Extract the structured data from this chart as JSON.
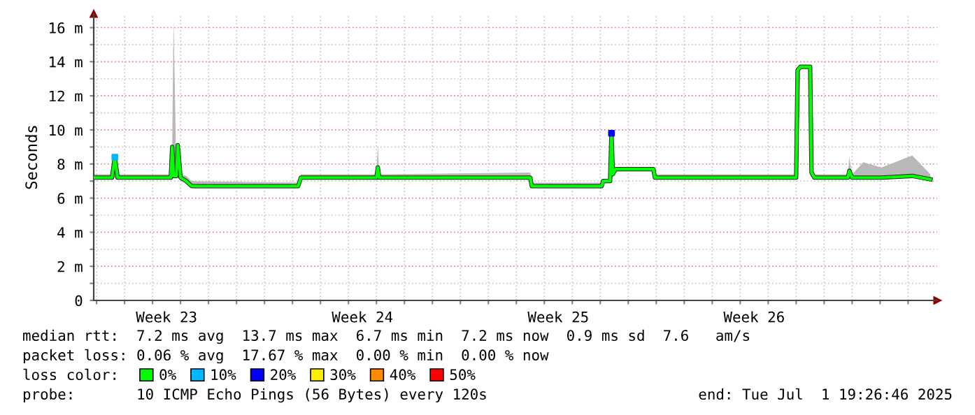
{
  "chart_data": {
    "type": "line",
    "ylabel": "Seconds",
    "legend_title": "loss color:",
    "legend": "bottom",
    "grid": true,
    "xlim": [
      "2025-06-01T21:30",
      "2025-07-02T01:00"
    ],
    "xticks": [
      {
        "value": "2025-06-02T00:00",
        "label": null
      },
      {
        "value": "2025-06-03T00:00",
        "label": null
      },
      {
        "value": "2025-06-04T00:00",
        "label": null
      },
      {
        "value": "2025-06-04T12:00",
        "label": "Week 23"
      },
      {
        "value": "2025-06-05T00:00",
        "label": null
      },
      {
        "value": "2025-06-06T00:00",
        "label": null
      },
      {
        "value": "2025-06-07T00:00",
        "label": null
      },
      {
        "value": "2025-06-08T00:00",
        "label": null
      },
      {
        "value": "2025-06-09T00:00",
        "label": null
      },
      {
        "value": "2025-06-10T00:00",
        "label": null
      },
      {
        "value": "2025-06-11T00:00",
        "label": null
      },
      {
        "value": "2025-06-11T12:00",
        "label": "Week 24"
      },
      {
        "value": "2025-06-12T00:00",
        "label": null
      },
      {
        "value": "2025-06-13T00:00",
        "label": null
      },
      {
        "value": "2025-06-14T00:00",
        "label": null
      },
      {
        "value": "2025-06-15T00:00",
        "label": null
      },
      {
        "value": "2025-06-16T00:00",
        "label": null
      },
      {
        "value": "2025-06-17T00:00",
        "label": null
      },
      {
        "value": "2025-06-18T00:00",
        "label": null
      },
      {
        "value": "2025-06-18T12:00",
        "label": "Week 25"
      },
      {
        "value": "2025-06-19T00:00",
        "label": null
      },
      {
        "value": "2025-06-20T00:00",
        "label": null
      },
      {
        "value": "2025-06-21T00:00",
        "label": null
      },
      {
        "value": "2025-06-22T00:00",
        "label": null
      },
      {
        "value": "2025-06-23T00:00",
        "label": null
      },
      {
        "value": "2025-06-24T00:00",
        "label": null
      },
      {
        "value": "2025-06-25T00:00",
        "label": null
      },
      {
        "value": "2025-06-25T12:00",
        "label": "Week 26"
      },
      {
        "value": "2025-06-26T00:00",
        "label": null
      },
      {
        "value": "2025-06-27T00:00",
        "label": null
      },
      {
        "value": "2025-06-28T00:00",
        "label": null
      },
      {
        "value": "2025-06-29T00:00",
        "label": null
      },
      {
        "value": "2025-06-30T00:00",
        "label": null
      },
      {
        "value": "2025-07-01T00:00",
        "label": null
      }
    ],
    "ylim": [
      0,
      16.8
    ],
    "yticks": [
      0,
      {
        "value": 1,
        "label": null
      },
      {
        "value": 2,
        "label": "2 m"
      },
      {
        "value": 3,
        "label": null
      },
      {
        "value": 4,
        "label": "4 m"
      },
      {
        "value": 5,
        "label": null
      },
      {
        "value": 6,
        "label": "6 m"
      },
      {
        "value": 7,
        "label": null
      },
      {
        "value": 8,
        "label": "8 m"
      },
      {
        "value": 9,
        "label": null
      },
      {
        "value": 10,
        "label": "10 m"
      },
      {
        "value": 11,
        "label": null
      },
      {
        "value": 12,
        "label": "12 m"
      },
      {
        "value": 13,
        "label": null
      },
      {
        "value": 14,
        "label": "14 m"
      },
      {
        "value": 15,
        "label": null
      },
      {
        "value": 16,
        "label": "16 m"
      }
    ],
    "series": [
      {
        "name": "0%",
        "color": "#00ff00",
        "x": [
          "2025-06-01T21:36",
          "2025-06-02T13:12",
          "2025-06-02T15:36",
          "2025-06-02T18:00",
          "2025-06-04T15:36",
          "2025-06-04T16:48",
          "2025-06-04T18:00",
          "2025-06-04T20:24",
          "2025-06-04T21:36",
          "2025-06-05T00:00",
          "2025-06-05T04:48",
          "2025-06-05T09:36",
          "2025-06-09T04:48",
          "2025-06-09T07:12",
          "2025-06-12T00:00",
          "2025-06-12T01:12",
          "2025-06-12T02:24",
          "2025-06-17T12:00",
          "2025-06-17T13:12",
          "2025-06-20T01:12",
          "2025-06-20T02:24",
          "2025-06-20T08:24",
          "2025-06-20T09:36",
          "2025-06-20T10:48",
          "2025-06-20T13:12",
          "2025-06-21T21:36",
          "2025-06-21T22:48",
          "2025-06-27T00:00",
          "2025-06-27T01:12",
          "2025-06-27T03:36",
          "2025-06-27T12:00",
          "2025-06-27T13:12",
          "2025-06-27T15:36",
          "2025-06-28T20:24",
          "2025-06-28T21:36",
          "2025-06-29T00:00",
          "2025-06-29T09:36",
          "2025-06-30T01:12",
          "2025-07-01T03:36",
          "2025-07-01T19:12"
        ],
        "values": [
          7.2,
          7.2,
          8.4,
          7.2,
          7.2,
          9.0,
          7.3,
          7.3,
          9.1,
          7.2,
          7.0,
          6.7,
          6.7,
          7.2,
          7.2,
          7.8,
          7.2,
          7.2,
          6.7,
          6.7,
          7.0,
          7.0,
          9.8,
          7.4,
          7.7,
          7.7,
          7.2,
          7.2,
          13.5,
          13.7,
          13.7,
          7.5,
          7.2,
          7.2,
          7.6,
          7.2,
          7.2,
          7.2,
          7.3,
          7.1
        ],
        "lower": [
          7.1,
          7.1,
          7.2,
          7.1,
          7.1,
          7.2,
          7.2,
          7.2,
          7.2,
          7.1,
          6.9,
          6.6,
          6.6,
          7.1,
          7.1,
          7.2,
          7.1,
          7.1,
          6.6,
          6.6,
          6.9,
          6.9,
          7.0,
          7.3,
          7.6,
          7.6,
          7.1,
          7.1,
          7.2,
          13.6,
          13.6,
          7.4,
          7.1,
          7.1,
          7.2,
          7.1,
          7.1,
          7.1,
          7.2,
          7.0
        ],
        "upper": [
          7.4,
          7.4,
          8.4,
          7.4,
          7.4,
          9.0,
          16.5,
          7.4,
          9.2,
          7.4,
          7.3,
          7.0,
          6.9,
          7.4,
          7.4,
          9.1,
          7.4,
          7.5,
          6.9,
          6.9,
          7.1,
          7.1,
          9.8,
          7.5,
          7.8,
          7.8,
          7.4,
          7.4,
          13.6,
          13.8,
          13.8,
          7.6,
          7.4,
          7.4,
          8.4,
          7.4,
          8.1,
          7.8,
          8.5,
          7.4
        ]
      },
      {
        "name": "10%",
        "color": "#00b8ff",
        "type": "scatter",
        "x": [
          "2025-06-02T15:36"
        ],
        "values": [
          8.4
        ]
      },
      {
        "name": "20%",
        "color": "#0000ff",
        "type": "scatter",
        "x": [
          "2025-06-20T09:36"
        ],
        "values": [
          9.8
        ]
      },
      {
        "name": "30%",
        "color": "#ffee00",
        "type": "scatter"
      },
      {
        "name": "40%",
        "color": "#ff8a00",
        "type": "scatter"
      },
      {
        "name": "50%",
        "color": "#ff0000",
        "type": "scatter"
      }
    ],
    "annotations": [
      "median rtt:  7.2 ms avg  13.7 ms max  6.7 ms min  7.2 ms now  0.9 ms sd  7.6   am/s",
      "packet loss: 0.06 % avg  17.67 % max  0.00 % min  0.00 % now",
      "probe:       10 ICMP Echo Pings (56 Bytes) every 120s",
      "end: Tue Jul  1 19:26:46 2025"
    ]
  }
}
